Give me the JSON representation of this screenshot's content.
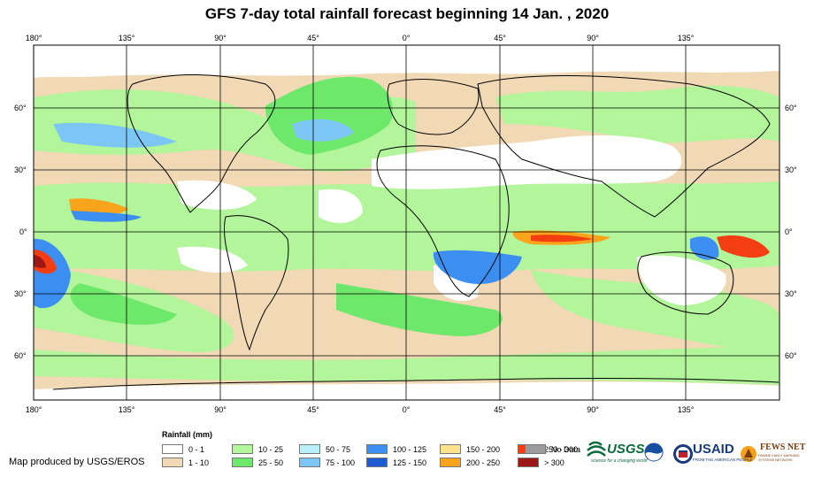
{
  "title": "GFS 7-day total rainfall forecast beginning 14 Jan. , 2020",
  "longitude_labels": [
    "180°",
    "135°",
    "90°",
    "45°",
    "0°",
    "45°",
    "90°",
    "135°"
  ],
  "latitude_labels": [
    "60°",
    "30°",
    "0°",
    "30°",
    "60°"
  ],
  "legend": {
    "title": "Rainfall (mm)",
    "items": [
      {
        "label": "0 - 1",
        "color": "#ffffff"
      },
      {
        "label": "1 - 10",
        "color": "#f1d9b5"
      },
      {
        "label": "10 - 25",
        "color": "#b3f59a"
      },
      {
        "label": "25 - 50",
        "color": "#6ee86b"
      },
      {
        "label": "50 - 75",
        "color": "#b8f0f8"
      },
      {
        "label": "75 - 100",
        "color": "#7cc6f5"
      },
      {
        "label": "100 - 125",
        "color": "#3c8ef0"
      },
      {
        "label": "125 - 150",
        "color": "#1e5ad2"
      },
      {
        "label": "150 - 200",
        "color": "#fde28c"
      },
      {
        "label": "200 - 250",
        "color": "#f9a41a"
      },
      {
        "label": "250 - 300",
        "color": "#f33d12"
      },
      {
        "label": "> 300",
        "color": "#9e1717"
      },
      {
        "label": "No Data",
        "color": "#9b9b9b"
      }
    ]
  },
  "credit": "Map produced by USGS/EROS",
  "logos": {
    "usgs": "USGS",
    "usgs_tagline": "science for a changing world",
    "usaid": "USAID",
    "usaid_tagline": "FROM THE AMERICAN PEOPLE",
    "fews": "FEWS NET",
    "fews_tagline": "FAMINE EARLY WARNING SYSTEMS NETWORK"
  }
}
